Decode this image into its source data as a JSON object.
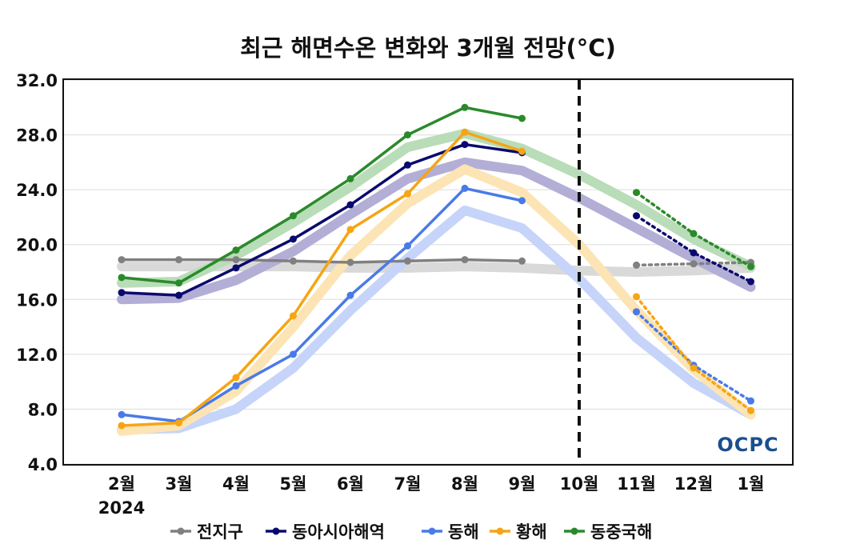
{
  "chart_data": {
    "type": "line",
    "title": "최근 해면수온 변화와 3개월 전망(°C)",
    "year_label": "2024",
    "categories": [
      "2월",
      "3월",
      "4월",
      "5월",
      "6월",
      "7월",
      "8월",
      "9월",
      "10월",
      "11월",
      "12월",
      "1월"
    ],
    "yticks": [
      "4.0",
      "8.0",
      "12.0",
      "16.0",
      "20.0",
      "24.0",
      "28.0",
      "32.0"
    ],
    "ylim": [
      4,
      32
    ],
    "grid": true,
    "forecast_divider_category": "10월",
    "legend_position": "bottom",
    "logo": "OCPC",
    "series": [
      {
        "name": "전지구",
        "color": "#808080",
        "climatology_color": "#d9d9d9",
        "observed": [
          18.9,
          18.9,
          18.9,
          18.8,
          18.7,
          18.8,
          18.9,
          18.8
        ],
        "forecast": [
          null,
          null,
          null,
          null,
          null,
          null,
          null,
          null,
          null,
          18.5,
          18.6,
          18.7
        ],
        "climatology": [
          18.4,
          18.4,
          18.4,
          18.4,
          18.3,
          18.3,
          18.4,
          18.3,
          18.1,
          18.0,
          18.1,
          18.3
        ]
      },
      {
        "name": "동아시아해역",
        "color": "#0a0a6e",
        "climatology_color": "#b3aed6",
        "observed": [
          16.5,
          16.3,
          18.3,
          20.4,
          22.9,
          25.8,
          27.3,
          26.7
        ],
        "forecast": [
          null,
          null,
          null,
          null,
          null,
          null,
          null,
          null,
          null,
          22.1,
          19.4,
          17.3
        ],
        "climatology": [
          16.0,
          16.1,
          17.4,
          19.5,
          22.2,
          24.8,
          26.0,
          25.4,
          23.4,
          21.2,
          19.0,
          16.9
        ]
      },
      {
        "name": "동해",
        "color": "#4a7ae8",
        "climatology_color": "#c6d4fa",
        "observed": [
          7.6,
          7.1,
          9.7,
          12.0,
          16.3,
          19.9,
          24.1,
          23.2
        ],
        "forecast": [
          null,
          null,
          null,
          null,
          null,
          null,
          null,
          null,
          null,
          15.1,
          11.2,
          8.6
        ],
        "climatology": [
          6.5,
          6.6,
          8.0,
          11.0,
          15.2,
          19.0,
          22.5,
          21.2,
          17.5,
          13.2,
          9.9,
          7.6
        ]
      },
      {
        "name": "황해",
        "color": "#f5a515",
        "climatology_color": "#fce4b4",
        "observed": [
          6.8,
          7.0,
          10.3,
          14.8,
          21.1,
          23.7,
          28.2,
          26.8
        ],
        "forecast": [
          null,
          null,
          null,
          null,
          null,
          null,
          null,
          null,
          null,
          16.2,
          11.0,
          7.9
        ],
        "climatology": [
          6.4,
          6.8,
          9.3,
          14.0,
          19.2,
          23.0,
          25.5,
          23.8,
          20.0,
          15.2,
          10.9,
          7.6
        ]
      },
      {
        "name": "동중국해",
        "color": "#2a8a2a",
        "climatology_color": "#b9dcb9",
        "observed": [
          17.6,
          17.2,
          19.6,
          22.1,
          24.8,
          28.0,
          30.0,
          29.2
        ],
        "forecast": [
          null,
          null,
          null,
          null,
          null,
          null,
          null,
          null,
          null,
          23.8,
          20.8,
          18.4
        ],
        "climatology": [
          17.2,
          17.3,
          19.2,
          21.6,
          24.2,
          27.1,
          28.1,
          27.0,
          25.1,
          22.9,
          20.4,
          18.4
        ]
      }
    ]
  }
}
